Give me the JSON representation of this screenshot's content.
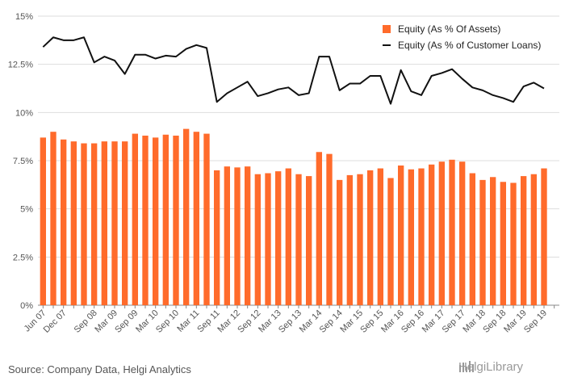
{
  "source": "Source: Company Data, Helgi Analytics",
  "brand": "HelgiLibrary",
  "colors": {
    "bar": "#ff6b2b",
    "line": "#111111",
    "grid": "#dddddd",
    "axis": "#888888"
  },
  "chart_data": {
    "type": "bar+line",
    "title": "",
    "xlabel": "",
    "ylabel": "",
    "ylim": [
      0,
      15
    ],
    "yticks": [
      "0%",
      "2.5%",
      "5%",
      "7.5%",
      "10%",
      "12.5%",
      "15%"
    ],
    "grid": true,
    "legend_position": "top-right",
    "categories": [
      "Jun 07",
      "Sep 07",
      "Dec 07",
      "Mar 08",
      "Jun 08",
      "Sep 08",
      "Dec 08",
      "Mar 09",
      "Jun 09",
      "Sep 09",
      "Dec 09",
      "Mar 10",
      "Jun 10",
      "Sep 10",
      "Dec 10",
      "Mar 11",
      "Jun 11",
      "Sep 11",
      "Dec 11",
      "Mar 12",
      "Jun 12",
      "Sep 12",
      "Dec 12",
      "Mar 13",
      "Jun 13",
      "Sep 13",
      "Dec 13",
      "Mar 14",
      "Jun 14",
      "Sep 14",
      "Dec 14",
      "Mar 15",
      "Jun 15",
      "Sep 15",
      "Dec 15",
      "Mar 16",
      "Jun 16",
      "Sep 16",
      "Dec 16",
      "Mar 17",
      "Jun 17",
      "Sep 17",
      "Dec 17",
      "Mar 18",
      "Jun 18",
      "Sep 18",
      "Dec 18",
      "Mar 19",
      "Jun 19",
      "Sep 19",
      "Dec 19"
    ],
    "xtick_labels": [
      "Jun 07",
      "Dec 07",
      "Sep 08",
      "Mar 09",
      "Sep 09",
      "Mar 10",
      "Sep 10",
      "Mar 11",
      "Sep 11",
      "Mar 12",
      "Sep 12",
      "Mar 13",
      "Sep 13",
      "Mar 14",
      "Sep 14",
      "Mar 15",
      "Sep 15",
      "Mar 16",
      "Sep 16",
      "Mar 17",
      "Sep 17",
      "Mar 18",
      "Sep 18",
      "Mar 19",
      "Sep 19"
    ],
    "series": [
      {
        "name": "Equity (As % Of Assets)",
        "kind": "bar",
        "values": [
          8.7,
          9.0,
          8.6,
          8.5,
          8.4,
          8.4,
          8.5,
          8.5,
          8.5,
          8.9,
          8.8,
          8.7,
          8.85,
          8.8,
          9.15,
          9.0,
          8.9,
          7.0,
          7.2,
          7.15,
          7.2,
          6.8,
          6.85,
          6.95,
          7.1,
          6.8,
          6.7,
          7.95,
          7.85,
          6.5,
          6.75,
          6.8,
          7.0,
          7.1,
          6.6,
          7.25,
          7.05,
          7.1,
          7.3,
          7.45,
          7.55,
          7.45,
          6.85,
          6.5,
          6.65,
          6.4,
          6.35,
          6.7,
          6.8,
          7.1,
          0
        ]
      },
      {
        "name": "Equity (As % of Customer Loans)",
        "kind": "line",
        "values": [
          13.4,
          13.9,
          13.75,
          13.75,
          13.9,
          12.6,
          12.9,
          12.7,
          12.0,
          13.0,
          13.0,
          12.8,
          12.95,
          12.9,
          13.3,
          13.5,
          13.35,
          10.55,
          11.0,
          11.3,
          11.6,
          10.85,
          11.0,
          11.2,
          11.3,
          10.9,
          11.0,
          12.9,
          12.9,
          11.15,
          11.5,
          11.5,
          11.9,
          11.9,
          10.45,
          12.2,
          11.1,
          10.9,
          11.9,
          12.05,
          12.25,
          11.75,
          11.3,
          11.15,
          10.9,
          10.75,
          10.55,
          11.35,
          11.55,
          11.25,
          null
        ]
      }
    ]
  }
}
